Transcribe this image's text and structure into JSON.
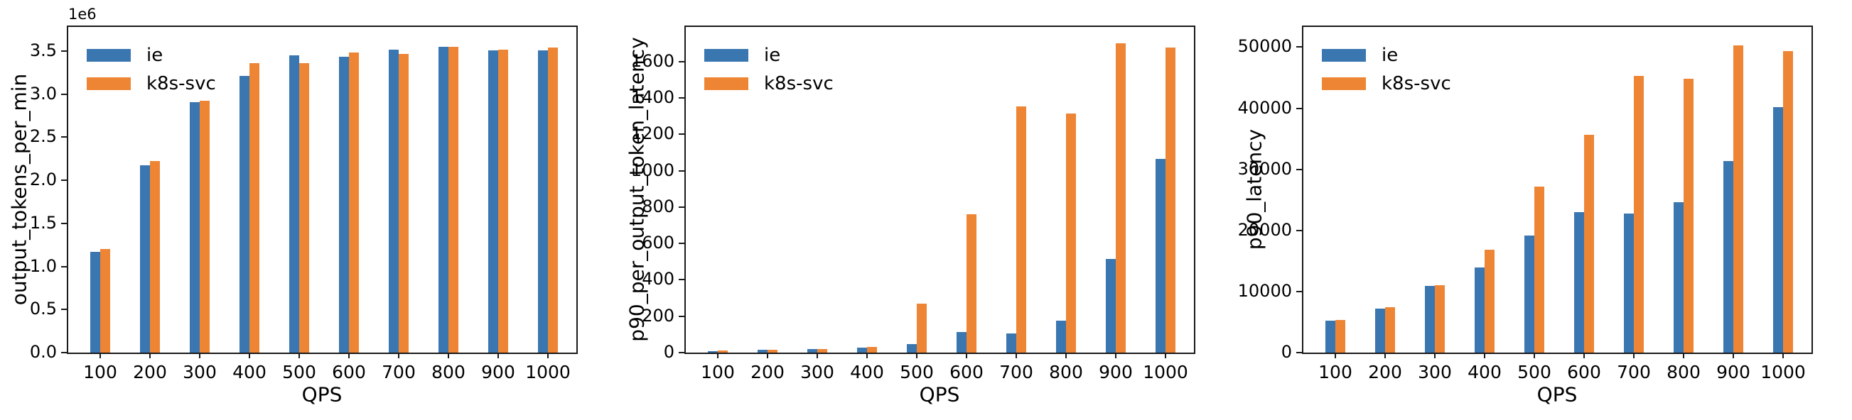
{
  "figure": {
    "background": "#ffffff",
    "axis_color": "#1a1a1a",
    "text_color": "#000000"
  },
  "palette": {
    "ie": "#3a76af",
    "k8s_svc": "#ee8535"
  },
  "legend": {
    "items": [
      {
        "label": "ie",
        "color": "#3a76af"
      },
      {
        "label": "k8s-svc",
        "color": "#ee8535"
      }
    ],
    "position": "upper-left",
    "frame": false
  },
  "chart_data": [
    {
      "type": "bar",
      "title": "",
      "ylabel": "output_tokens_per_min",
      "xlabel": "QPS",
      "offset_text": "1e6",
      "grid": false,
      "legend_position": "upper-left",
      "categories": [
        "100",
        "200",
        "300",
        "400",
        "500",
        "600",
        "700",
        "800",
        "900",
        "1000"
      ],
      "series": [
        {
          "name": "ie",
          "color": "#3a76af",
          "values": [
            1170000,
            2170000,
            2910000,
            3210000,
            3450000,
            3430000,
            3520000,
            3550000,
            3510000,
            3510000
          ]
        },
        {
          "name": "k8s-svc",
          "color": "#ee8535",
          "values": [
            1200000,
            2220000,
            2920000,
            3360000,
            3360000,
            3480000,
            3470000,
            3550000,
            3520000,
            3540000
          ]
        }
      ],
      "ylim": [
        0,
        3780000
      ],
      "yticks": [
        {
          "label": "0.0",
          "value": 0
        },
        {
          "label": "0.5",
          "value": 500000
        },
        {
          "label": "1.0",
          "value": 1000000
        },
        {
          "label": "1.5",
          "value": 1500000
        },
        {
          "label": "2.0",
          "value": 2000000
        },
        {
          "label": "2.5",
          "value": 2500000
        },
        {
          "label": "3.0",
          "value": 3000000
        },
        {
          "label": "3.5",
          "value": 3500000
        }
      ]
    },
    {
      "type": "bar",
      "title": "",
      "ylabel": "p90_per_output_token_latency",
      "xlabel": "QPS",
      "grid": false,
      "legend_position": "upper-left",
      "categories": [
        "100",
        "200",
        "300",
        "400",
        "500",
        "600",
        "700",
        "800",
        "900",
        "1000"
      ],
      "series": [
        {
          "name": "ie",
          "color": "#3a76af",
          "values": [
            8,
            14,
            20,
            28,
            45,
            115,
            105,
            175,
            515,
            1065
          ]
        },
        {
          "name": "k8s-svc",
          "color": "#ee8535",
          "values": [
            10,
            14,
            20,
            32,
            270,
            760,
            1355,
            1315,
            1700,
            1675
          ]
        }
      ],
      "ylim": [
        0,
        1790
      ],
      "yticks": [
        {
          "label": "0",
          "value": 0
        },
        {
          "label": "200",
          "value": 200
        },
        {
          "label": "400",
          "value": 400
        },
        {
          "label": "600",
          "value": 600
        },
        {
          "label": "800",
          "value": 800
        },
        {
          "label": "1000",
          "value": 1000
        },
        {
          "label": "1200",
          "value": 1200
        },
        {
          "label": "1400",
          "value": 1400
        },
        {
          "label": "1600",
          "value": 1600
        }
      ]
    },
    {
      "type": "bar",
      "title": "",
      "ylabel": "p90_latency",
      "xlabel": "QPS",
      "grid": false,
      "legend_position": "upper-left",
      "categories": [
        "100",
        "200",
        "300",
        "400",
        "500",
        "600",
        "700",
        "800",
        "900",
        "1000"
      ],
      "series": [
        {
          "name": "ie",
          "color": "#3a76af",
          "values": [
            5200,
            7200,
            10900,
            13900,
            19200,
            23000,
            22800,
            24600,
            31300,
            40200
          ]
        },
        {
          "name": "k8s-svc",
          "color": "#ee8535",
          "values": [
            5300,
            7400,
            11000,
            16800,
            27200,
            35600,
            45300,
            44800,
            50300,
            49400
          ]
        }
      ],
      "ylim": [
        0,
        53300
      ],
      "yticks": [
        {
          "label": "0",
          "value": 0
        },
        {
          "label": "10000",
          "value": 10000
        },
        {
          "label": "20000",
          "value": 20000
        },
        {
          "label": "30000",
          "value": 30000
        },
        {
          "label": "40000",
          "value": 40000
        },
        {
          "label": "50000",
          "value": 50000
        }
      ]
    }
  ]
}
